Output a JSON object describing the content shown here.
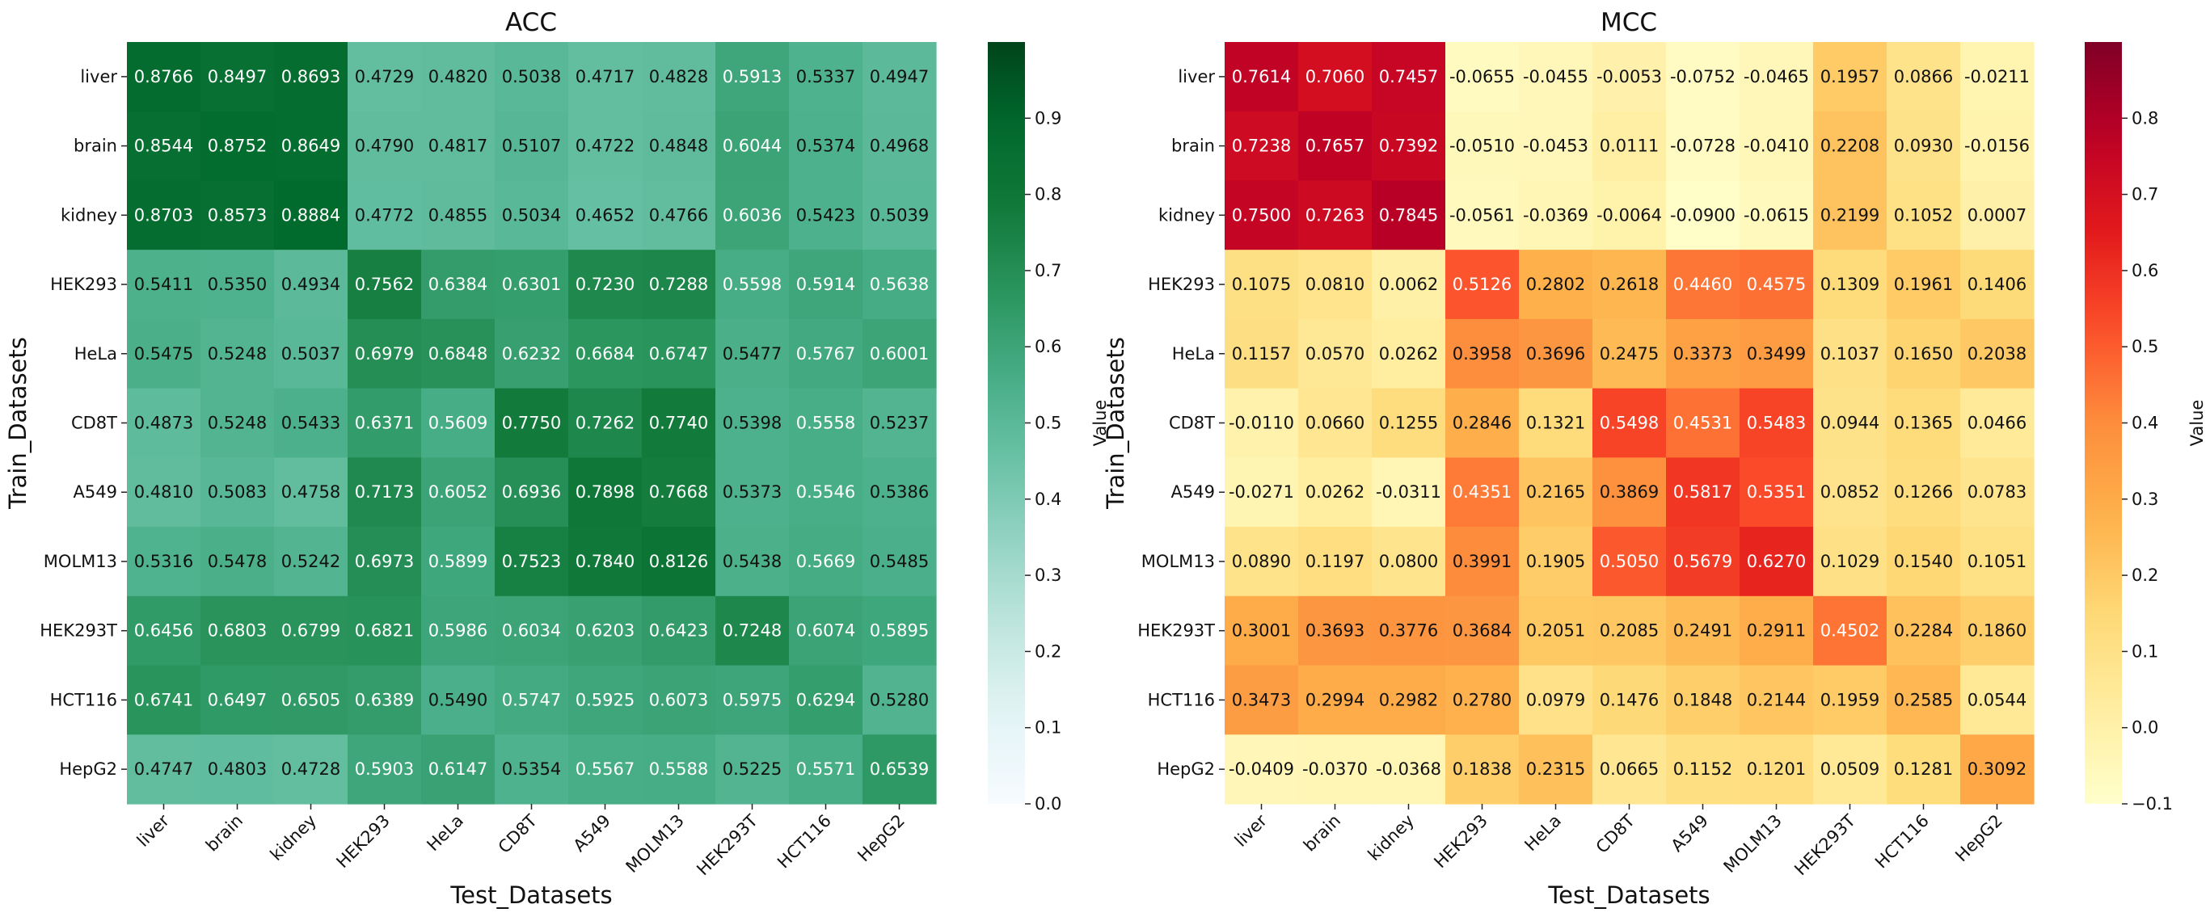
{
  "chart_data": [
    {
      "type": "heatmap",
      "title": "ACC",
      "xlabel": "Test_Datasets",
      "ylabel": "Train_Datasets",
      "colormap": "Greens",
      "colorbar": {
        "label": "Value",
        "range": [
          0.0,
          1.0
        ],
        "ticks": [
          0.0,
          0.1,
          0.2,
          0.3,
          0.4,
          0.5,
          0.6,
          0.7,
          0.8,
          0.9
        ]
      },
      "x_categories": [
        "liver",
        "brain",
        "kidney",
        "HEK293",
        "HeLa",
        "CD8T",
        "A549",
        "MOLM13",
        "HEK293T",
        "HCT116",
        "HepG2"
      ],
      "y_categories": [
        "liver",
        "brain",
        "kidney",
        "HEK293",
        "HeLa",
        "CD8T",
        "A549",
        "MOLM13",
        "HEK293T",
        "HCT116",
        "HepG2"
      ],
      "values": [
        [
          0.8766,
          0.8497,
          0.8693,
          0.4729,
          0.482,
          0.5038,
          0.4717,
          0.4828,
          0.5913,
          0.5337,
          0.4947
        ],
        [
          0.8544,
          0.8752,
          0.8649,
          0.479,
          0.4817,
          0.5107,
          0.4722,
          0.4848,
          0.6044,
          0.5374,
          0.4968
        ],
        [
          0.8703,
          0.8573,
          0.8884,
          0.4772,
          0.4855,
          0.5034,
          0.4652,
          0.4766,
          0.6036,
          0.5423,
          0.5039
        ],
        [
          0.5411,
          0.535,
          0.4934,
          0.7562,
          0.6384,
          0.6301,
          0.723,
          0.7288,
          0.5598,
          0.5914,
          0.5638
        ],
        [
          0.5475,
          0.5248,
          0.5037,
          0.6979,
          0.6848,
          0.6232,
          0.6684,
          0.6747,
          0.5477,
          0.5767,
          0.6001
        ],
        [
          0.4873,
          0.5248,
          0.5433,
          0.6371,
          0.5609,
          0.775,
          0.7262,
          0.774,
          0.5398,
          0.5558,
          0.5237
        ],
        [
          0.481,
          0.5083,
          0.4758,
          0.7173,
          0.6052,
          0.6936,
          0.7898,
          0.7668,
          0.5373,
          0.5546,
          0.5386
        ],
        [
          0.5316,
          0.5478,
          0.5242,
          0.6973,
          0.5899,
          0.7523,
          0.784,
          0.8126,
          0.5438,
          0.5669,
          0.5485
        ],
        [
          0.6456,
          0.6803,
          0.6799,
          0.6821,
          0.5986,
          0.6034,
          0.6203,
          0.6423,
          0.7248,
          0.6074,
          0.5895
        ],
        [
          0.6741,
          0.6497,
          0.6505,
          0.6389,
          0.549,
          0.5747,
          0.5925,
          0.6073,
          0.5975,
          0.6294,
          0.528
        ],
        [
          0.4747,
          0.4803,
          0.4728,
          0.5903,
          0.6147,
          0.5354,
          0.5567,
          0.5588,
          0.5225,
          0.5571,
          0.6539
        ]
      ]
    },
    {
      "type": "heatmap",
      "title": "MCC",
      "xlabel": "Test_Datasets",
      "ylabel": "Train_Datasets",
      "colormap": "YlOrRd",
      "colorbar": {
        "label": "Value",
        "range": [
          -0.1,
          0.9
        ],
        "ticks": [
          -0.1,
          0.0,
          0.1,
          0.2,
          0.3,
          0.4,
          0.5,
          0.6,
          0.7,
          0.8
        ]
      },
      "x_categories": [
        "liver",
        "brain",
        "kidney",
        "HEK293",
        "HeLa",
        "CD8T",
        "A549",
        "MOLM13",
        "HEK293T",
        "HCT116",
        "HepG2"
      ],
      "y_categories": [
        "liver",
        "brain",
        "kidney",
        "HEK293",
        "HeLa",
        "CD8T",
        "A549",
        "MOLM13",
        "HEK293T",
        "HCT116",
        "HepG2"
      ],
      "values": [
        [
          0.7614,
          0.706,
          0.7457,
          -0.0655,
          -0.0455,
          -0.0053,
          -0.0752,
          -0.0465,
          0.1957,
          0.0866,
          -0.0211
        ],
        [
          0.7238,
          0.7657,
          0.7392,
          -0.051,
          -0.0453,
          0.0111,
          -0.0728,
          -0.041,
          0.2208,
          0.093,
          -0.0156
        ],
        [
          0.75,
          0.7263,
          0.7845,
          -0.0561,
          -0.0369,
          -0.0064,
          -0.09,
          -0.0615,
          0.2199,
          0.1052,
          0.0007
        ],
        [
          0.1075,
          0.081,
          0.0062,
          0.5126,
          0.2802,
          0.2618,
          0.446,
          0.4575,
          0.1309,
          0.1961,
          0.1406
        ],
        [
          0.1157,
          0.057,
          0.0262,
          0.3958,
          0.3696,
          0.2475,
          0.3373,
          0.3499,
          0.1037,
          0.165,
          0.2038
        ],
        [
          -0.011,
          0.066,
          0.1255,
          0.2846,
          0.1321,
          0.5498,
          0.4531,
          0.5483,
          0.0944,
          0.1365,
          0.0466
        ],
        [
          -0.0271,
          0.0262,
          -0.0311,
          0.4351,
          0.2165,
          0.3869,
          0.5817,
          0.5351,
          0.0852,
          0.1266,
          0.0783
        ],
        [
          0.089,
          0.1197,
          0.08,
          0.3991,
          0.1905,
          0.505,
          0.5679,
          0.627,
          0.1029,
          0.154,
          0.1051
        ],
        [
          0.3001,
          0.3693,
          0.3776,
          0.3684,
          0.2051,
          0.2085,
          0.2491,
          0.2911,
          0.4502,
          0.2284,
          0.186
        ],
        [
          0.3473,
          0.2994,
          0.2982,
          0.278,
          0.0979,
          0.1476,
          0.1848,
          0.2144,
          0.1959,
          0.2585,
          0.0544
        ],
        [
          -0.0409,
          -0.037,
          -0.0368,
          0.1838,
          0.2315,
          0.0665,
          0.1152,
          0.1201,
          0.0509,
          0.1281,
          0.3092
        ]
      ]
    }
  ]
}
